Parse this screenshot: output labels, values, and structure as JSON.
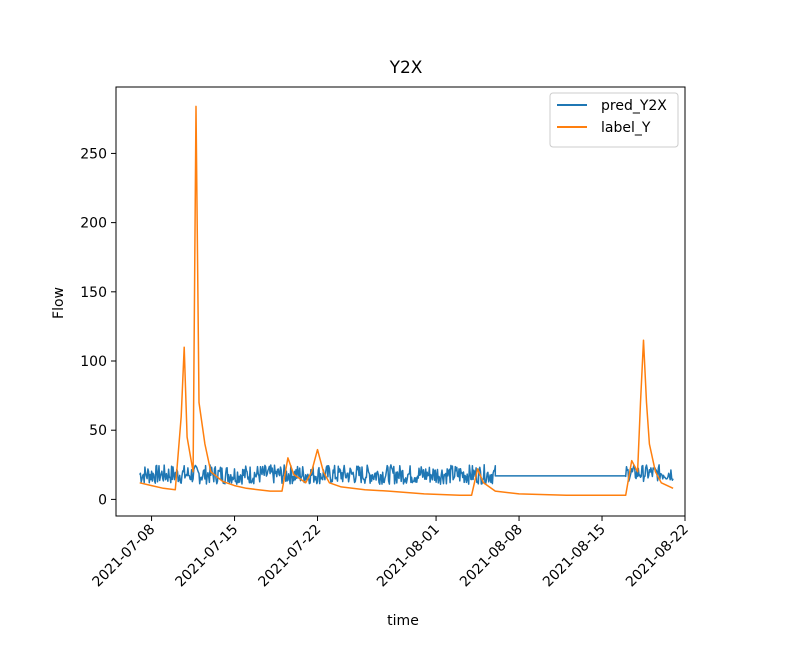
{
  "chart_data": {
    "type": "line",
    "title": "Y2X",
    "xlabel": "time",
    "ylabel": "Flow",
    "x_type": "date",
    "xlim": [
      "2021-07-05",
      "2021-08-22"
    ],
    "ylim": [
      -12,
      298
    ],
    "x_ticks": [
      "2021-07-08",
      "2021-07-15",
      "2021-07-22",
      "2021-08-01",
      "2021-08-08",
      "2021-08-15",
      "2021-08-22"
    ],
    "y_ticks": [
      0,
      50,
      100,
      150,
      200,
      250
    ],
    "legend": {
      "position": "top-right"
    },
    "grid": false,
    "series": [
      {
        "name": "pred_Y2X",
        "color": "#1f77b4",
        "segments": [
          {
            "start": "2021-07-07",
            "end": "2021-08-06",
            "baseline": 18,
            "noise": 7
          },
          {
            "start": "2021-08-06",
            "end": "2021-08-17",
            "baseline": 17,
            "noise": 0
          },
          {
            "start": "2021-08-17",
            "end": "2021-08-21",
            "baseline": 19,
            "noise": 6
          }
        ]
      },
      {
        "name": "label_Y",
        "color": "#ff7f0e",
        "points": [
          [
            "2021-07-07",
            12
          ],
          [
            "2021-07-08",
            10
          ],
          [
            "2021-07-09",
            8
          ],
          [
            "2021-07-10",
            7
          ],
          [
            "2021-07-10T12",
            60
          ],
          [
            "2021-07-10T18",
            110
          ],
          [
            "2021-07-11",
            45
          ],
          [
            "2021-07-11T12",
            20
          ],
          [
            "2021-07-11T18",
            284
          ],
          [
            "2021-07-12",
            70
          ],
          [
            "2021-07-12T12",
            40
          ],
          [
            "2021-07-13",
            20
          ],
          [
            "2021-07-14",
            13
          ],
          [
            "2021-07-15",
            10
          ],
          [
            "2021-07-16",
            8
          ],
          [
            "2021-07-17",
            7
          ],
          [
            "2021-07-18",
            6
          ],
          [
            "2021-07-19",
            6
          ],
          [
            "2021-07-19T12",
            30
          ],
          [
            "2021-07-20",
            18
          ],
          [
            "2021-07-21",
            12
          ],
          [
            "2021-07-21T12",
            20
          ],
          [
            "2021-07-22",
            36
          ],
          [
            "2021-07-22T12",
            20
          ],
          [
            "2021-07-23",
            12
          ],
          [
            "2021-07-24",
            9
          ],
          [
            "2021-07-26",
            7
          ],
          [
            "2021-07-28",
            6
          ],
          [
            "2021-07-31",
            4
          ],
          [
            "2021-08-03",
            3
          ],
          [
            "2021-08-04",
            3
          ],
          [
            "2021-08-04T12",
            22
          ],
          [
            "2021-08-05",
            12
          ],
          [
            "2021-08-06",
            6
          ],
          [
            "2021-08-08",
            4
          ],
          [
            "2021-08-12",
            3
          ],
          [
            "2021-08-16",
            3
          ],
          [
            "2021-08-17",
            3
          ],
          [
            "2021-08-17T12",
            28
          ],
          [
            "2021-08-18",
            20
          ],
          [
            "2021-08-18T06",
            70
          ],
          [
            "2021-08-18T12",
            115
          ],
          [
            "2021-08-18T18",
            70
          ],
          [
            "2021-08-19",
            40
          ],
          [
            "2021-08-19T12",
            20
          ],
          [
            "2021-08-20",
            12
          ],
          [
            "2021-08-21",
            8
          ]
        ]
      }
    ]
  }
}
